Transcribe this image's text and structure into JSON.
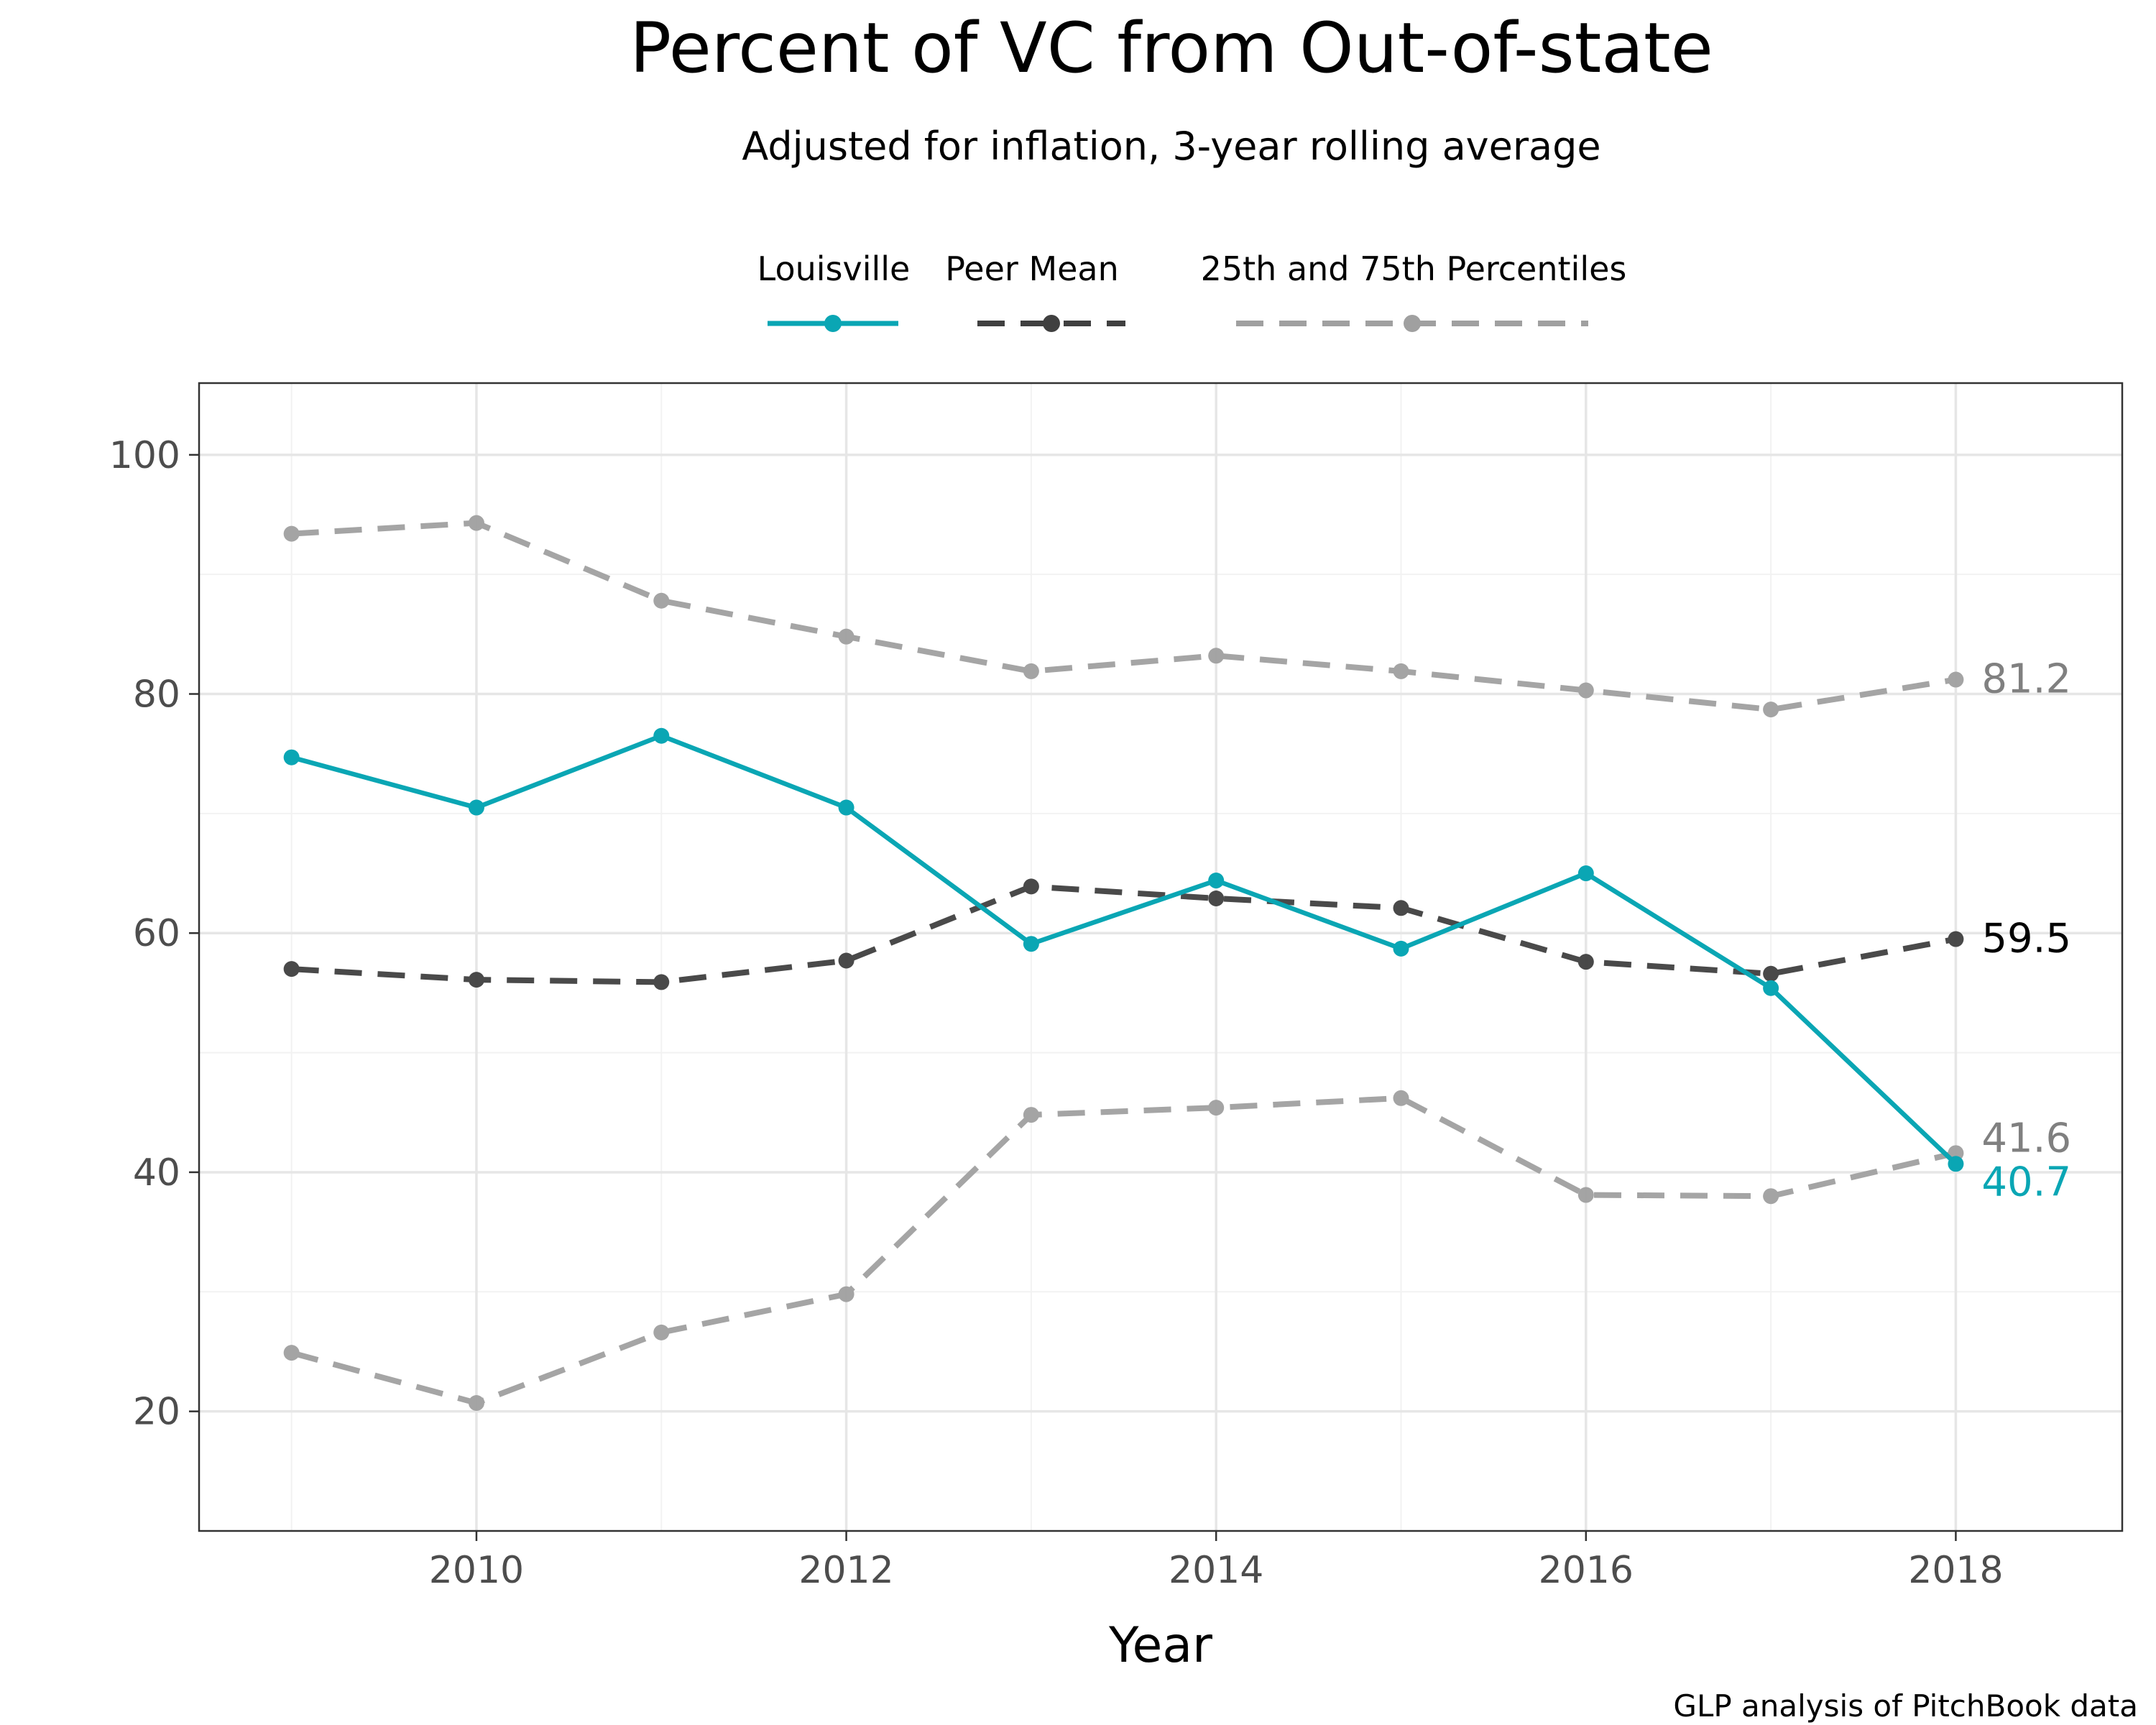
{
  "chart_data": {
    "type": "line",
    "title": "Percent of VC from Out-of-state",
    "subtitle": "Adjusted for inflation, 3-year rolling average",
    "xlabel": "Year",
    "ylabel": "",
    "caption": "GLP analysis of PitchBook data",
    "x": [
      2009,
      2010,
      2011,
      2012,
      2013,
      2014,
      2015,
      2016,
      2017,
      2018
    ],
    "xlim": [
      2008.5,
      2018.9
    ],
    "ylim": [
      10,
      106
    ],
    "x_ticks": [
      2010,
      2012,
      2014,
      2016,
      2018
    ],
    "x_tick_labels": [
      "2010",
      "2012",
      "2014",
      "2016",
      "2018"
    ],
    "y_ticks": [
      20,
      40,
      60,
      80,
      100
    ],
    "y_tick_labels": [
      "20",
      "40",
      "60",
      "80",
      "100"
    ],
    "grid": true,
    "legend_position": "top",
    "legend": [
      {
        "label": "Louisville",
        "style": "solid",
        "color": "#0aa6b4"
      },
      {
        "label": "Peer Mean",
        "style": "dashed",
        "color": "#404040"
      },
      {
        "label": "25th and 75th Percentiles",
        "style": "dashed",
        "color": "#a0a0a0"
      }
    ],
    "series": [
      {
        "name": "Louisville",
        "color": "#0aa6b4",
        "style": "solid",
        "values": [
          74.7,
          70.5,
          76.5,
          70.5,
          59.1,
          64.4,
          58.7,
          65.0,
          55.4,
          40.7
        ],
        "end_label": "40.7"
      },
      {
        "name": "Peer Mean",
        "color": "#404040",
        "style": "dashed",
        "values": [
          57.0,
          56.1,
          55.9,
          57.7,
          63.9,
          62.9,
          62.1,
          57.6,
          56.6,
          59.5
        ],
        "end_label": "59.5"
      },
      {
        "name": "75th Percentile",
        "color": "#a0a0a0",
        "style": "dashed",
        "values": [
          93.4,
          94.3,
          87.8,
          84.8,
          81.9,
          83.2,
          81.9,
          80.3,
          78.7,
          81.2
        ],
        "end_label": "81.2"
      },
      {
        "name": "25th Percentile",
        "color": "#a0a0a0",
        "style": "dashed",
        "values": [
          24.9,
          20.7,
          26.6,
          29.8,
          44.8,
          45.4,
          46.2,
          38.1,
          38.0,
          41.6
        ],
        "end_label": "41.6"
      }
    ]
  }
}
